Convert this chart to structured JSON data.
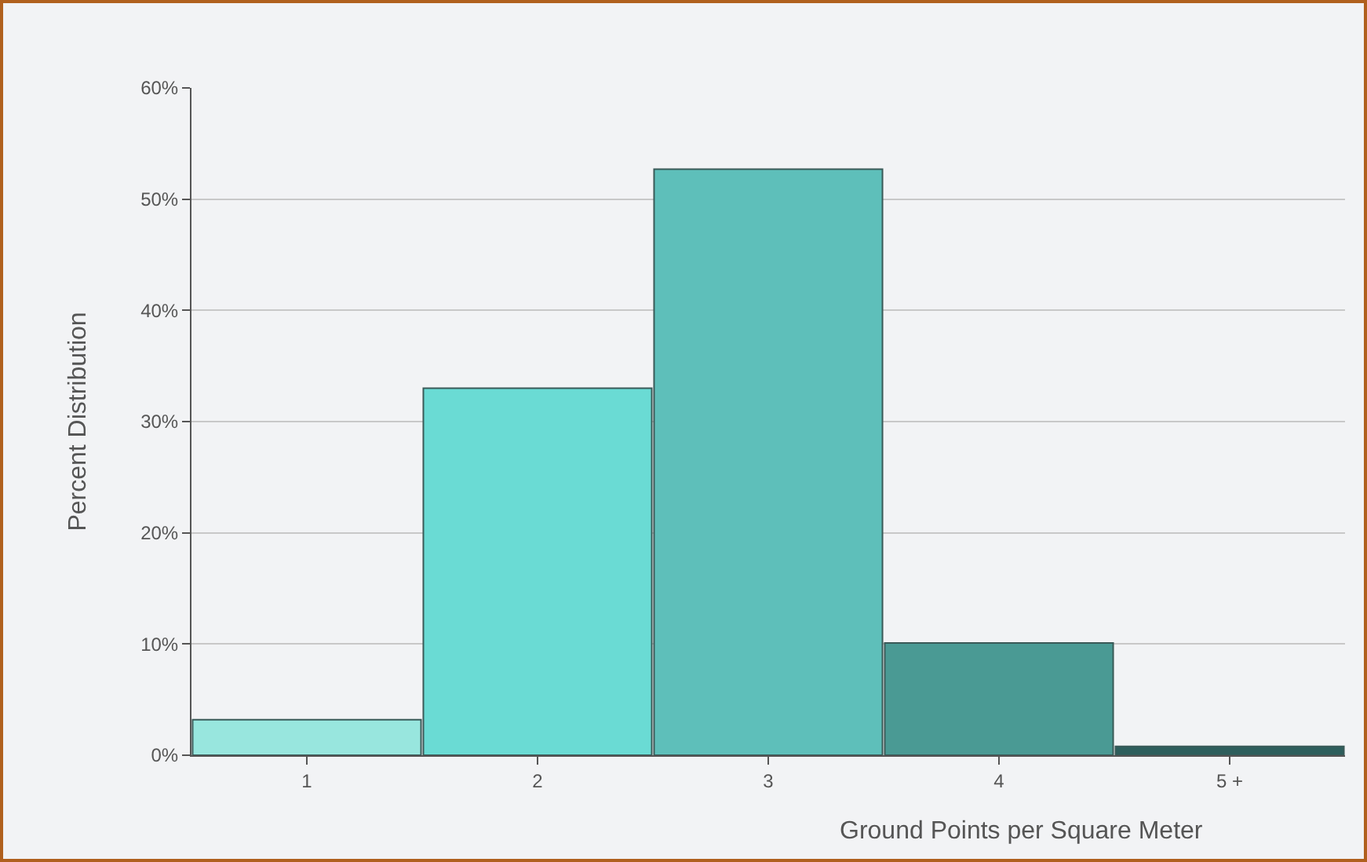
{
  "chart_data": {
    "type": "bar",
    "xlabel": "Ground Points per Square Meter",
    "ylabel": "Percent Distribution",
    "categories": [
      "1",
      "2",
      "3",
      "4",
      "5 +"
    ],
    "values": [
      3.2,
      33.0,
      52.7,
      10.1,
      0.8
    ],
    "colors": [
      "#98e6de",
      "#6adbd4",
      "#5ebfba",
      "#4a9a94",
      "#2e5e5c"
    ],
    "ylim": [
      0,
      60
    ],
    "yticks": [
      {
        "value": 0,
        "label": "0%"
      },
      {
        "value": 10,
        "label": "10%"
      },
      {
        "value": 20,
        "label": "20%"
      },
      {
        "value": 30,
        "label": "30%"
      },
      {
        "value": 40,
        "label": "40%"
      },
      {
        "value": 50,
        "label": "50%"
      },
      {
        "value": 60,
        "label": "60%"
      }
    ],
    "grid": "y"
  }
}
